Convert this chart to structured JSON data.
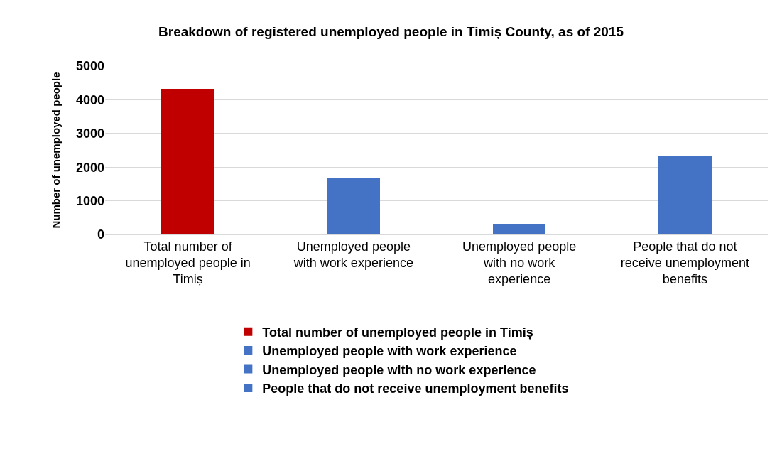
{
  "chart_data": {
    "type": "bar",
    "title": "Breakdown of registered unemployed people in Timiș County, as of 2015",
    "ylabel": "Number of unemployed people",
    "categories": [
      "Total number of unemployed people in Timiș",
      "Unemployed people with work experience",
      "Unemployed people with no work experience",
      "People that do not receive unemployment benefits"
    ],
    "series": [
      {
        "name": "Total number of unemployed people in Timiș",
        "color": "#c00000",
        "values": [
          4320,
          null,
          null,
          null
        ]
      },
      {
        "name": "Unemployed people with work experience",
        "color": "#4472c4",
        "values": [
          null,
          1660,
          null,
          null
        ]
      },
      {
        "name": "Unemployed people with no work experience",
        "color": "#4472c4",
        "values": [
          null,
          null,
          320,
          null
        ]
      },
      {
        "name": "People that do not receive unemployment benefits",
        "color": "#4472c4",
        "values": [
          null,
          null,
          null,
          2320
        ]
      }
    ],
    "ylim": [
      0,
      5000
    ],
    "yticks": [
      0,
      1000,
      2000,
      3000,
      4000,
      5000
    ],
    "grid": "y",
    "legend": "bottom"
  }
}
